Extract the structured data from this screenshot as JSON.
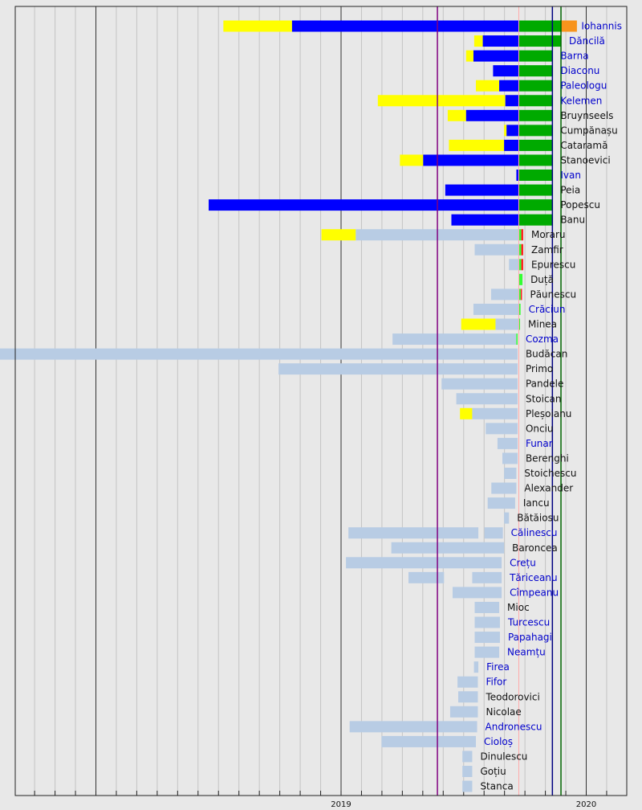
{
  "colors": {
    "background": "#e8e8e8",
    "frame": "#222222",
    "gridline_minor": "#c4c4c4",
    "gridline_year": "#333333",
    "timeline": "#b8cce4",
    "primary_campaign": "#ffff00",
    "candidate": "#0000ff",
    "first_round": "#00aa00",
    "second_round": "#f7941d",
    "withdrawn": "#33ff33",
    "excluded": "#ff2222",
    "cutoff_line": "#ffaaaa",
    "event_purple": "#800080",
    "event_navy": "#000080",
    "event_green": "#006600",
    "label_link": "#0000cc",
    "label_plain": "#111111"
  },
  "chart_data": {
    "type": "timeline",
    "xlabel": "",
    "ylabel": "",
    "xaxis_ticks": [
      {
        "label": "2019",
        "year": 2019
      },
      {
        "label": "2020",
        "year": 2020
      }
    ],
    "xlim": [
      2017.33,
      2020.17
    ],
    "vertical_markers": [
      {
        "year": 2019.393,
        "color": "purple"
      },
      {
        "year": 2019.862,
        "color": "navy"
      },
      {
        "year": 2019.897,
        "color": "green"
      }
    ],
    "series": [
      {
        "name": "Iohannis",
        "link": true,
        "bars": [
          [
            2018.52,
            2018.8,
            "primary_campaign"
          ],
          [
            2018.8,
            2019.725,
            "candidate"
          ],
          [
            2019.725,
            2019.897,
            "first_round"
          ],
          [
            2019.897,
            2019.962,
            "second_round"
          ]
        ]
      },
      {
        "name": "Dăncilă",
        "link": true,
        "bars": [
          [
            2019.543,
            2019.578,
            "primary_campaign"
          ],
          [
            2019.578,
            2019.725,
            "candidate"
          ],
          [
            2019.725,
            2019.897,
            "first_round"
          ]
        ]
      },
      {
        "name": "Barna",
        "link": true,
        "bars": [
          [
            2019.51,
            2019.54,
            "primary_campaign"
          ],
          [
            2019.54,
            2019.725,
            "candidate"
          ],
          [
            2019.725,
            2019.862,
            "first_round"
          ]
        ]
      },
      {
        "name": "Diaconu",
        "link": true,
        "bars": [
          [
            2019.62,
            2019.725,
            "candidate"
          ],
          [
            2019.725,
            2019.862,
            "first_round"
          ]
        ]
      },
      {
        "name": "Paleologu",
        "link": true,
        "bars": [
          [
            2019.55,
            2019.645,
            "primary_campaign"
          ],
          [
            2019.645,
            2019.725,
            "candidate"
          ],
          [
            2019.725,
            2019.862,
            "first_round"
          ]
        ]
      },
      {
        "name": "Kelemen",
        "link": true,
        "bars": [
          [
            2019.15,
            2019.67,
            "primary_campaign"
          ],
          [
            2019.67,
            2019.725,
            "candidate"
          ],
          [
            2019.725,
            2019.862,
            "first_round"
          ]
        ]
      },
      {
        "name": "Bruynseels",
        "link": false,
        "bars": [
          [
            2019.435,
            2019.51,
            "primary_campaign"
          ],
          [
            2019.51,
            2019.725,
            "candidate"
          ],
          [
            2019.725,
            2019.862,
            "first_round"
          ]
        ]
      },
      {
        "name": "Cumpănașu",
        "link": false,
        "bars": [
          [
            2019.665,
            2019.675,
            "primary_campaign"
          ],
          [
            2019.675,
            2019.725,
            "candidate"
          ],
          [
            2019.725,
            2019.862,
            "first_round"
          ]
        ]
      },
      {
        "name": "Cataramă",
        "link": false,
        "bars": [
          [
            2019.44,
            2019.665,
            "primary_campaign"
          ],
          [
            2019.665,
            2019.725,
            "candidate"
          ],
          [
            2019.725,
            2019.862,
            "first_round"
          ]
        ]
      },
      {
        "name": "Stanoevici",
        "link": false,
        "bars": [
          [
            2019.24,
            2019.335,
            "primary_campaign"
          ],
          [
            2019.335,
            2019.725,
            "candidate"
          ],
          [
            2019.725,
            2019.862,
            "first_round"
          ]
        ]
      },
      {
        "name": "Ivan",
        "link": true,
        "bars": [
          [
            2019.715,
            2019.725,
            "candidate"
          ],
          [
            2019.725,
            2019.862,
            "first_round"
          ]
        ]
      },
      {
        "name": "Peia",
        "link": false,
        "bars": [
          [
            2019.425,
            2019.725,
            "candidate"
          ],
          [
            2019.725,
            2019.862,
            "first_round"
          ]
        ]
      },
      {
        "name": "Popescu",
        "link": false,
        "bars": [
          [
            2018.46,
            2019.725,
            "candidate"
          ],
          [
            2019.725,
            2019.862,
            "first_round"
          ]
        ]
      },
      {
        "name": "Banu",
        "link": false,
        "bars": [
          [
            2019.45,
            2019.725,
            "candidate"
          ],
          [
            2019.725,
            2019.862,
            "first_round"
          ]
        ]
      },
      {
        "name": "Moraru",
        "link": false,
        "bars": [
          [
            2018.92,
            2019.06,
            "primary_campaign"
          ],
          [
            2019.06,
            2019.725,
            "timeline"
          ],
          [
            2019.725,
            2019.735,
            "withdrawn"
          ],
          [
            2019.735,
            2019.743,
            "excluded"
          ]
        ]
      },
      {
        "name": "Zamfir",
        "link": false,
        "bars": [
          [
            2019.545,
            2019.725,
            "timeline"
          ],
          [
            2019.725,
            2019.735,
            "withdrawn"
          ],
          [
            2019.735,
            2019.743,
            "excluded"
          ]
        ]
      },
      {
        "name": "Epurescu",
        "link": false,
        "bars": [
          [
            2019.685,
            2019.725,
            "timeline"
          ],
          [
            2019.725,
            2019.735,
            "withdrawn"
          ],
          [
            2019.735,
            2019.743,
            "excluded"
          ]
        ]
      },
      {
        "name": "Duță",
        "link": false,
        "bars": [
          [
            2019.725,
            2019.74,
            "withdrawn"
          ]
        ]
      },
      {
        "name": "Păunescu",
        "link": false,
        "bars": [
          [
            2019.612,
            2019.725,
            "timeline"
          ],
          [
            2019.725,
            2019.733,
            "withdrawn"
          ],
          [
            2019.733,
            2019.738,
            "excluded"
          ]
        ]
      },
      {
        "name": "Crăciun",
        "link": true,
        "bars": [
          [
            2019.54,
            2019.725,
            "timeline"
          ],
          [
            2019.725,
            2019.732,
            "withdrawn"
          ]
        ]
      },
      {
        "name": "Minea",
        "link": false,
        "bars": [
          [
            2019.49,
            2019.63,
            "primary_campaign"
          ],
          [
            2019.63,
            2019.725,
            "timeline"
          ],
          [
            2019.725,
            2019.73,
            "withdrawn"
          ]
        ]
      },
      {
        "name": "Cozma",
        "link": true,
        "bars": [
          [
            2019.21,
            2019.715,
            "timeline"
          ],
          [
            2019.715,
            2019.72,
            "withdrawn"
          ]
        ]
      },
      {
        "name": "Budăcan",
        "link": false,
        "bars": [
          [
            2017.34,
            2019.72,
            "timeline"
          ]
        ]
      },
      {
        "name": "Primo",
        "link": false,
        "bars": [
          [
            2018.745,
            2019.72,
            "timeline"
          ]
        ]
      },
      {
        "name": "Pandele",
        "link": false,
        "bars": [
          [
            2019.41,
            2019.72,
            "timeline"
          ]
        ]
      },
      {
        "name": "Stoican",
        "link": false,
        "bars": [
          [
            2019.47,
            2019.72,
            "timeline"
          ]
        ]
      },
      {
        "name": "Pleșoianu",
        "link": false,
        "bars": [
          [
            2019.485,
            2019.535,
            "primary_campaign"
          ],
          [
            2019.535,
            2019.72,
            "timeline"
          ]
        ]
      },
      {
        "name": "Onciu",
        "link": false,
        "bars": [
          [
            2019.59,
            2019.72,
            "timeline"
          ]
        ]
      },
      {
        "name": "Funar",
        "link": true,
        "bars": [
          [
            2019.638,
            2019.72,
            "timeline"
          ]
        ]
      },
      {
        "name": "Berenghi",
        "link": false,
        "bars": [
          [
            2019.658,
            2019.72,
            "timeline"
          ]
        ]
      },
      {
        "name": "Stoichescu",
        "link": false,
        "bars": [
          [
            2019.665,
            2019.715,
            "timeline"
          ]
        ]
      },
      {
        "name": "Alexander",
        "link": false,
        "bars": [
          [
            2019.613,
            2019.715,
            "timeline"
          ]
        ]
      },
      {
        "name": "Iancu",
        "link": false,
        "bars": [
          [
            2019.598,
            2019.71,
            "timeline"
          ]
        ]
      },
      {
        "name": "Bătăiosu",
        "link": false,
        "bars": [
          [
            2019.665,
            2019.685,
            "timeline"
          ]
        ]
      },
      {
        "name": "Călinescu",
        "link": true,
        "bars": [
          [
            2019.03,
            2019.56,
            "timeline"
          ],
          [
            2019.585,
            2019.66,
            "timeline"
          ]
        ]
      },
      {
        "name": "Baroncea",
        "link": false,
        "bars": [
          [
            2019.205,
            2019.665,
            "timeline"
          ]
        ]
      },
      {
        "name": "Crețu",
        "link": true,
        "bars": [
          [
            2019.02,
            2019.655,
            "timeline"
          ]
        ]
      },
      {
        "name": "Tăriceanu",
        "link": true,
        "bars": [
          [
            2019.275,
            2019.42,
            "timeline"
          ],
          [
            2019.535,
            2019.655,
            "timeline"
          ]
        ]
      },
      {
        "name": "Cîmpeanu",
        "link": true,
        "bars": [
          [
            2019.455,
            2019.655,
            "timeline"
          ]
        ]
      },
      {
        "name": "Mioc",
        "link": false,
        "bars": [
          [
            2019.545,
            2019.645,
            "timeline"
          ]
        ]
      },
      {
        "name": "Turcescu",
        "link": true,
        "bars": [
          [
            2019.545,
            2019.648,
            "timeline"
          ]
        ]
      },
      {
        "name": "Papahagi",
        "link": true,
        "bars": [
          [
            2019.545,
            2019.648,
            "timeline"
          ]
        ]
      },
      {
        "name": "Neamțu",
        "link": true,
        "bars": [
          [
            2019.545,
            2019.645,
            "timeline"
          ]
        ]
      },
      {
        "name": "Firea",
        "link": true,
        "bars": [
          [
            2019.542,
            2019.56,
            "timeline"
          ]
        ]
      },
      {
        "name": "Fifor",
        "link": true,
        "bars": [
          [
            2019.475,
            2019.558,
            "timeline"
          ]
        ]
      },
      {
        "name": "Teodorovici",
        "link": false,
        "bars": [
          [
            2019.478,
            2019.558,
            "timeline"
          ]
        ]
      },
      {
        "name": "Nicolae",
        "link": false,
        "bars": [
          [
            2019.445,
            2019.558,
            "timeline"
          ]
        ]
      },
      {
        "name": "Andronescu",
        "link": true,
        "bars": [
          [
            2019.035,
            2019.555,
            "timeline"
          ]
        ]
      },
      {
        "name": "Cioloș",
        "link": true,
        "bars": [
          [
            2019.165,
            2019.55,
            "timeline"
          ]
        ]
      },
      {
        "name": "Dinulescu",
        "link": false,
        "bars": [
          [
            2019.495,
            2019.535,
            "timeline"
          ]
        ]
      },
      {
        "name": "Goțiu",
        "link": false,
        "bars": [
          [
            2019.495,
            2019.535,
            "timeline"
          ]
        ]
      },
      {
        "name": "Stanca",
        "link": false,
        "bars": [
          [
            2019.495,
            2019.535,
            "timeline"
          ]
        ]
      }
    ]
  }
}
